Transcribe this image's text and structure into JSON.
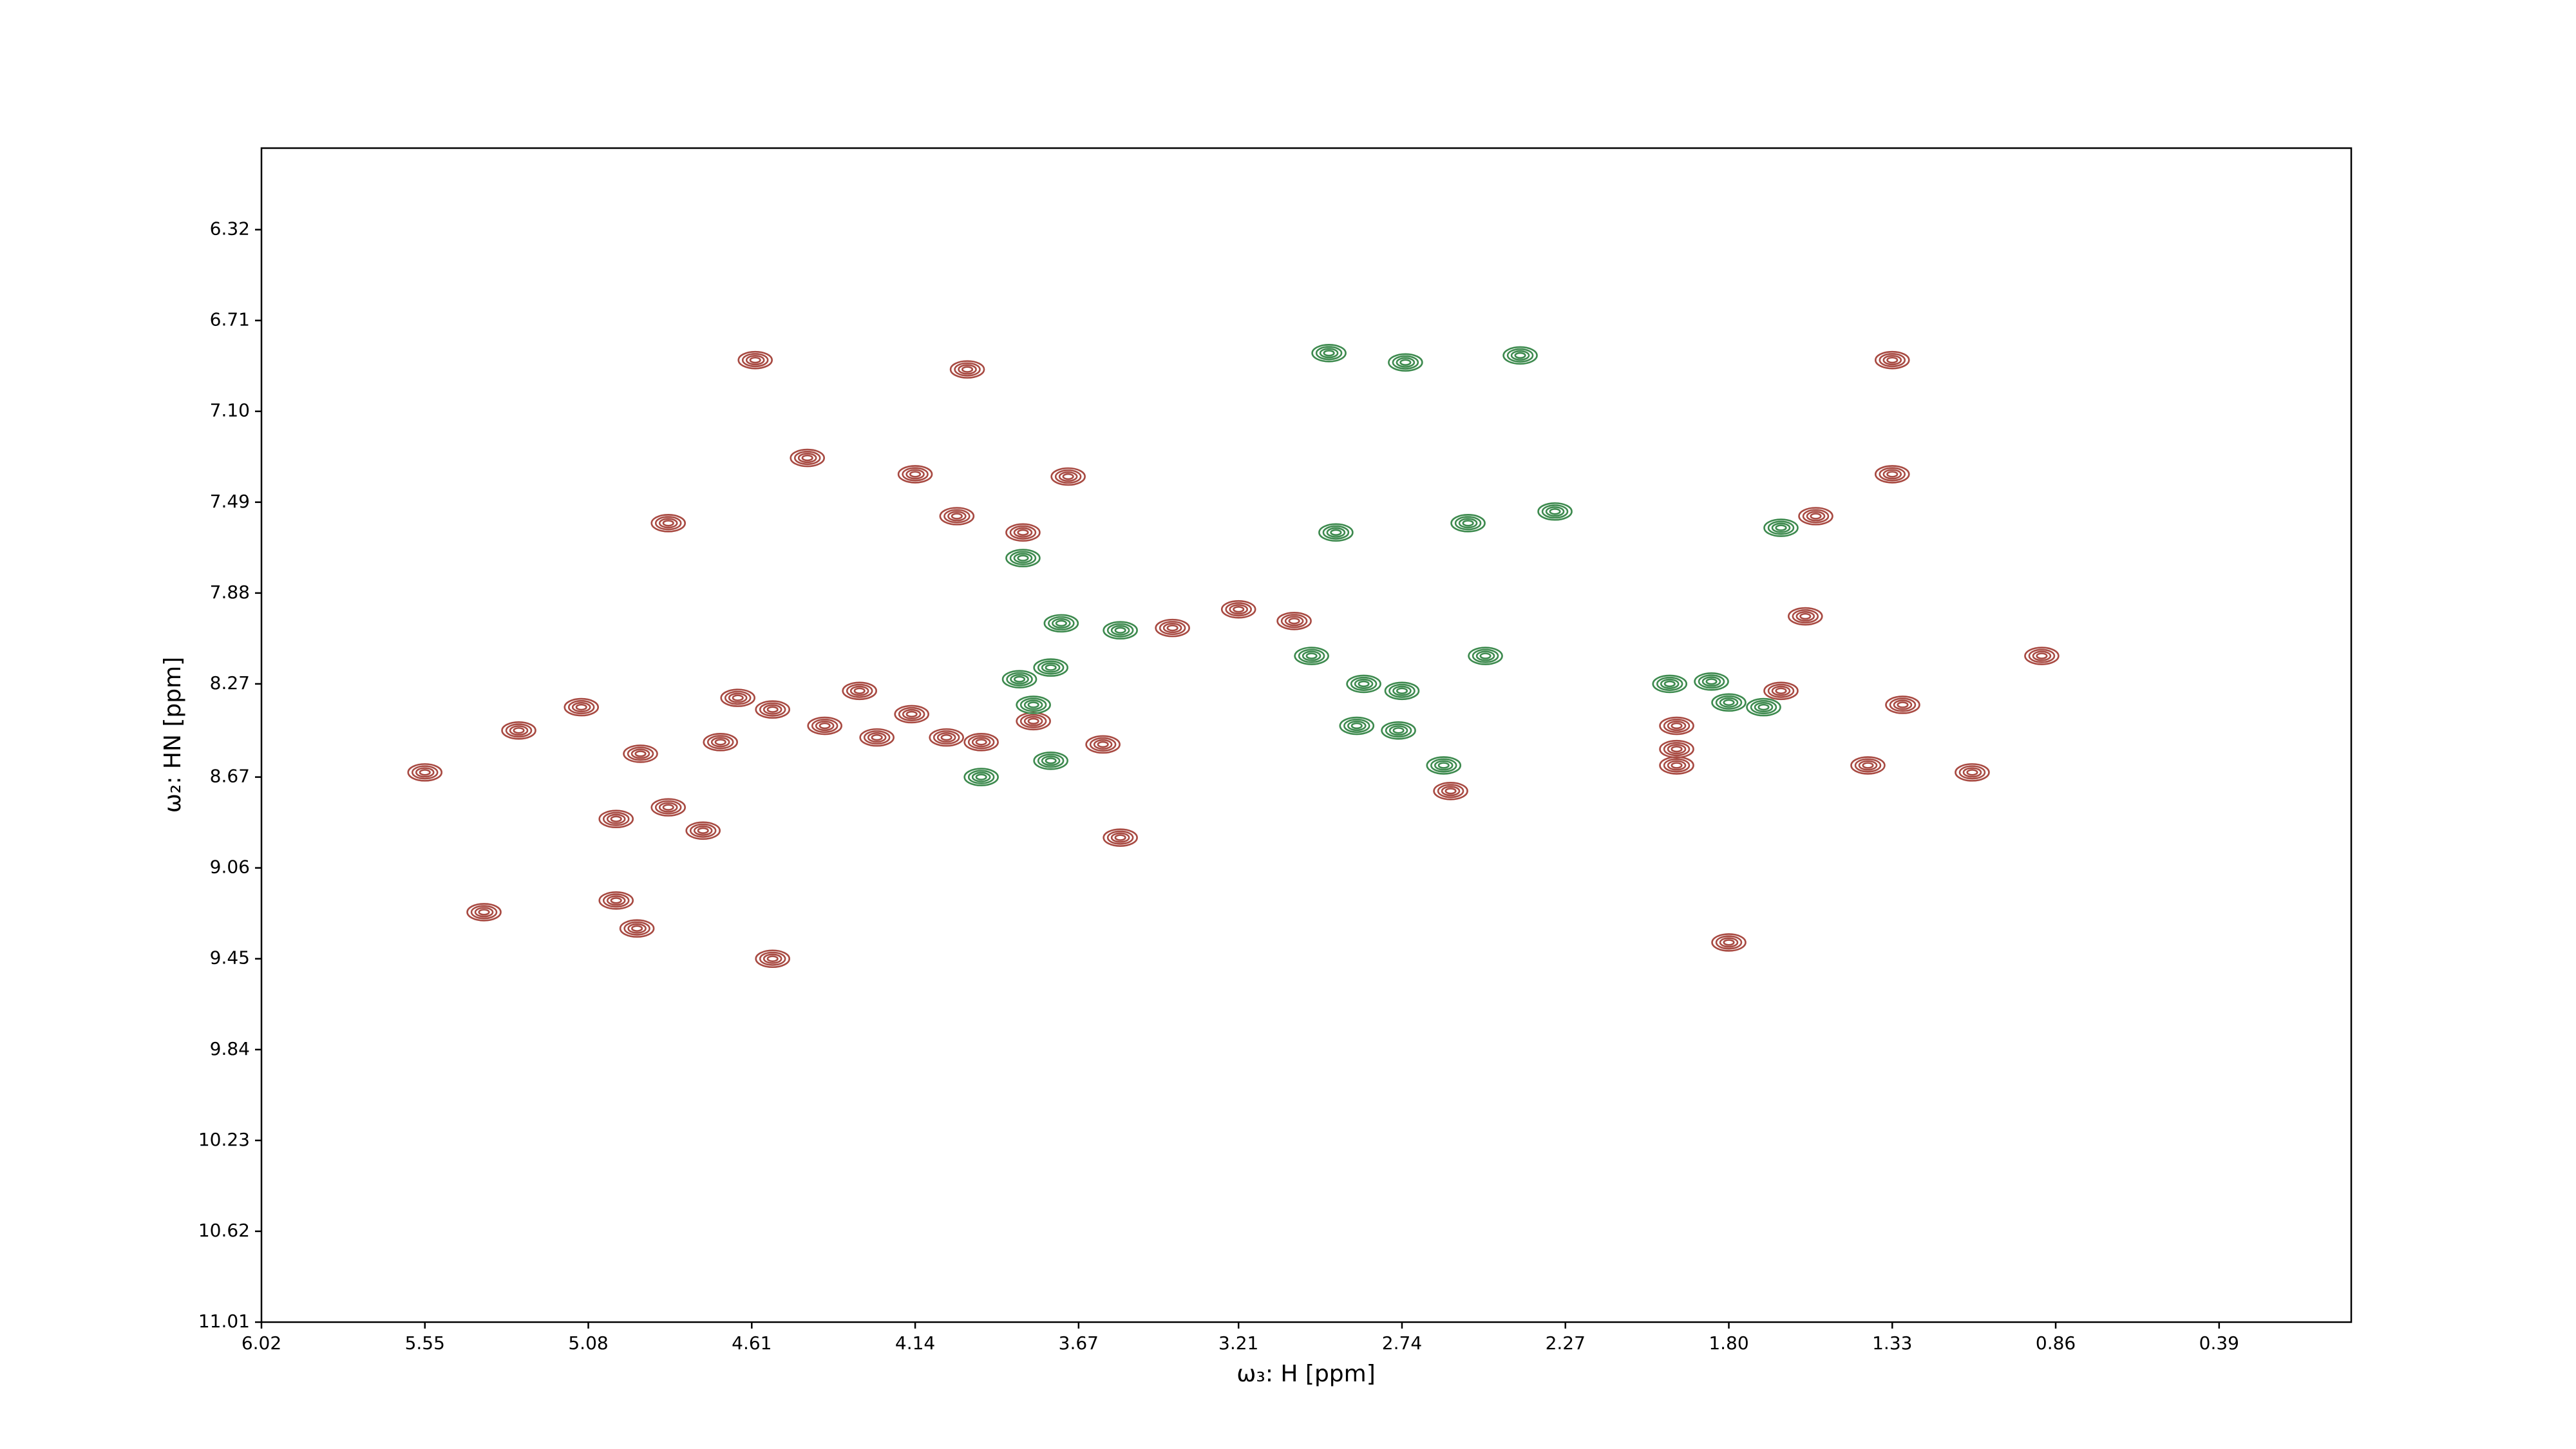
{
  "chart_data": {
    "type": "contour",
    "xlabel": "ω₃: H [ppm]",
    "ylabel": "ω₂: HN [ppm]",
    "xlim": [
      6.02,
      0.01
    ],
    "ylim": [
      11.01,
      5.97
    ],
    "xticks": [
      6.02,
      5.55,
      5.08,
      4.61,
      4.14,
      3.67,
      3.21,
      2.74,
      2.27,
      {
        "value": 1.8,
        "label": "1.80"
      },
      1.33,
      0.86,
      0.39
    ],
    "yticks": [
      6.32,
      6.71,
      {
        "value": 7.1,
        "label": "7.10"
      },
      7.49,
      7.88,
      8.27,
      8.67,
      9.06,
      9.45,
      9.84,
      10.23,
      10.62,
      11.01
    ],
    "series": [
      {
        "color": "#a84a42",
        "x": [
          4.7,
          4.55,
          4.4,
          4.25,
          4.05,
          4.65,
          4.3,
          4.15,
          3.95,
          4.6,
          3.99,
          4.45,
          4.14,
          4.02,
          4.85,
          3.83,
          3.7,
          5.55,
          5.28,
          5.1,
          4.93,
          5.0,
          4.85,
          4.75,
          5.0,
          4.94,
          5.38,
          4.55,
          3.05,
          3.21,
          3.8,
          3.6,
          3.55,
          3.4,
          1.95,
          1.95,
          1.95,
          1.65,
          1.3,
          1.4,
          1.1,
          1.33,
          1.55,
          1.33,
          1.58,
          0.9,
          1.8,
          2.6
        ],
        "y": [
          8.52,
          8.38,
          8.45,
          8.5,
          8.5,
          8.33,
          8.3,
          8.4,
          8.52,
          6.88,
          6.92,
          7.3,
          7.37,
          7.55,
          7.58,
          7.62,
          7.38,
          8.65,
          8.47,
          8.37,
          8.57,
          8.85,
          8.8,
          8.9,
          9.2,
          9.32,
          9.25,
          9.45,
          8.0,
          7.95,
          8.43,
          8.53,
          8.93,
          8.03,
          8.45,
          8.55,
          8.62,
          8.3,
          8.36,
          8.62,
          8.65,
          7.37,
          7.55,
          6.88,
          7.98,
          8.15,
          9.38,
          8.73
        ]
      },
      {
        "color": "#3d8a4e",
        "x": [
          3.75,
          3.84,
          3.72,
          3.55,
          3.8,
          3.83,
          3.75,
          3.95,
          2.95,
          2.73,
          2.4,
          2.93,
          2.55,
          2.3,
          3.0,
          2.85,
          2.74,
          2.87,
          2.75,
          2.5,
          2.62,
          1.97,
          1.85,
          1.8,
          1.7,
          1.65
        ],
        "y": [
          8.2,
          8.25,
          8.01,
          8.04,
          8.36,
          7.73,
          8.6,
          8.67,
          6.85,
          6.89,
          6.86,
          7.62,
          7.58,
          7.53,
          8.15,
          8.27,
          8.3,
          8.45,
          8.47,
          8.15,
          8.62,
          8.27,
          8.26,
          8.35,
          8.37,
          7.6
        ]
      }
    ]
  }
}
